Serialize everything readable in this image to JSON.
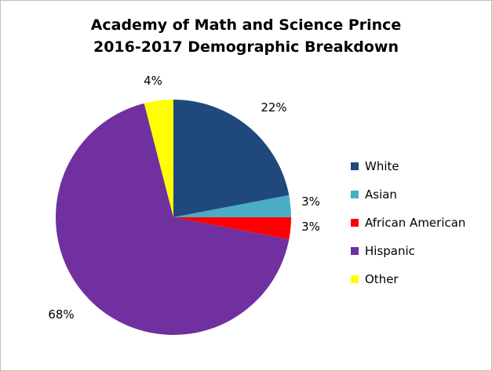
{
  "chart_data": {
    "type": "pie",
    "title": "Academy of Math and Science Prince",
    "subtitle": "2016-2017 Demographic Breakdown",
    "categories": [
      "White",
      "Asian",
      "African American",
      "Hispanic",
      "Other"
    ],
    "values": [
      22,
      3,
      3,
      68,
      4
    ],
    "value_labels": [
      "22%",
      "3%",
      "3%",
      "68%",
      "4%"
    ],
    "colors": [
      "#1f497d",
      "#4bacc6",
      "#ff0000",
      "#7030a0",
      "#ffff00"
    ],
    "start_angle_deg": 0,
    "direction": "clockwise",
    "legend_position": "right"
  }
}
